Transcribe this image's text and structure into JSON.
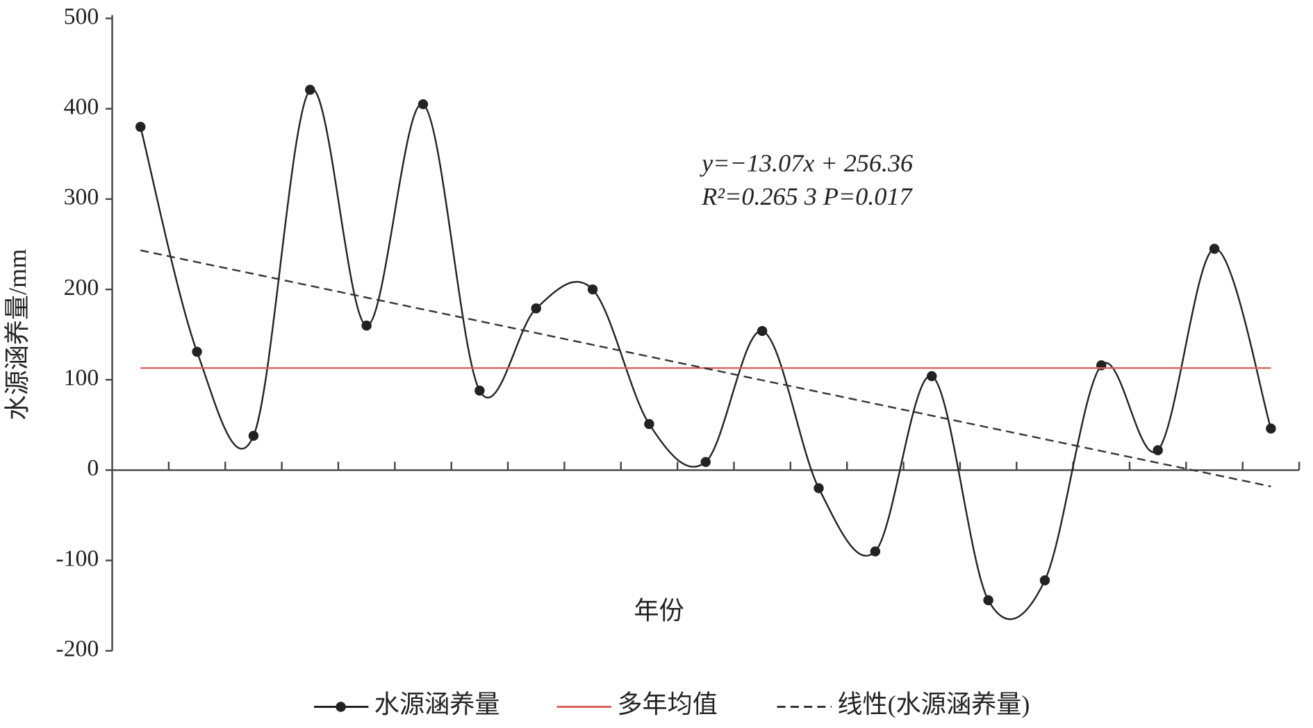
{
  "chart_data": {
    "type": "line",
    "x_label": "年份",
    "y_label": "水源涵养量/mm",
    "annotations": [
      "y=−13.07x + 256.36",
      "R²=0.265 3   P=0.017"
    ],
    "categories": [
      null,
      null,
      null,
      null,
      null,
      null,
      null,
      null,
      null,
      null,
      null,
      null,
      null,
      null,
      null,
      null,
      null,
      null,
      null,
      null,
      null
    ],
    "series": [
      {
        "name": "水源涵养量",
        "color": "#222222",
        "style": "smooth-markers",
        "values": [
          380,
          131,
          38,
          421,
          160,
          405,
          88,
          179,
          200,
          51,
          9,
          154,
          -20,
          -90,
          104,
          -144,
          -122,
          116,
          22,
          245,
          46
        ]
      },
      {
        "name": "多年均值",
        "color": "#d9605a",
        "style": "solid",
        "values": [
          113,
          113,
          113,
          113,
          113,
          113,
          113,
          113,
          113,
          113,
          113,
          113,
          113,
          113,
          113,
          113,
          113,
          113,
          113,
          113,
          113
        ]
      },
      {
        "name": "线性(水源涵养量)",
        "color": "#333333",
        "style": "dashed",
        "values": [
          243.3,
          230.2,
          217.2,
          204.1,
          191.0,
          177.9,
          164.9,
          151.8,
          138.7,
          125.7,
          112.6,
          99.5,
          86.5,
          73.4,
          60.3,
          47.2,
          34.2,
          21.1,
          8.0,
          -5.0,
          -18.1
        ]
      }
    ],
    "ylim": [
      -200,
      500
    ],
    "yticks": [
      -200,
      -100,
      0,
      100,
      200,
      300,
      400,
      500
    ]
  }
}
